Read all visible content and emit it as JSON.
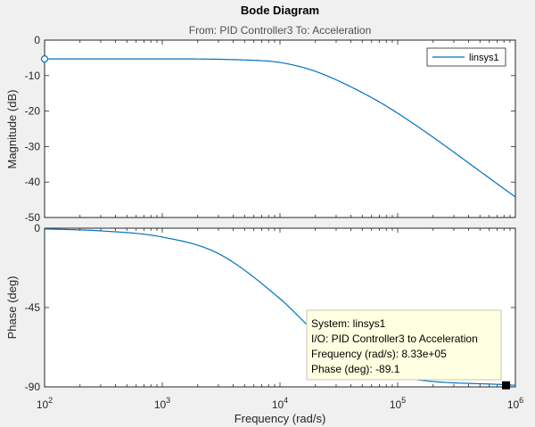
{
  "title": "Bode Diagram",
  "subtitle": "From: PID Controller3  To: Acceleration",
  "chart_data": {
    "type": "line",
    "x_scale": "log",
    "xlabel": "Frequency  (rad/s)",
    "xlim": [
      100,
      1000000
    ],
    "x_ticks": [
      100,
      1000,
      10000,
      100000,
      1000000
    ],
    "legend": {
      "entries": [
        "linsys1"
      ],
      "placement": "top-right"
    },
    "grid": false,
    "series_color": "#0072BD",
    "panels": [
      {
        "name": "magnitude",
        "ylabel": "Magnitude (dB)",
        "ylim": [
          -50,
          0
        ],
        "y_ticks": [
          0,
          -10,
          -20,
          -30,
          -40,
          -50
        ],
        "series": [
          {
            "name": "linsys1",
            "x": [
              100,
              1000,
              5000,
              10000,
              20000,
              50000,
              100000,
              1000000
            ],
            "y": [
              -5.3,
              -5.3,
              -5.6,
              -6.3,
              -8.8,
              -14.8,
              -20.6,
              -44.2
            ]
          }
        ]
      },
      {
        "name": "phase",
        "ylabel": "Phase (deg)",
        "ylim": [
          -90,
          0
        ],
        "y_ticks": [
          0,
          -45,
          -90
        ],
        "series": [
          {
            "name": "linsys1",
            "x": [
              100,
              300,
              1000,
              3000,
              10000,
              20000,
              40000,
              100000,
              1000000
            ],
            "y": [
              -0.4,
              -1.5,
              -5.0,
              -14.4,
              -40.0,
              -59.0,
              -73.5,
              -84.0,
              -89.1
            ]
          }
        ]
      }
    ]
  },
  "datatip": {
    "line1": "System: linsys1",
    "line2": "I/O: PID Controller3 to Acceleration",
    "line3": "Frequency (rad/s): 8.33e+05",
    "line4": "Phase (deg): -89.1",
    "frequency": 833000,
    "phase": -89.1
  }
}
